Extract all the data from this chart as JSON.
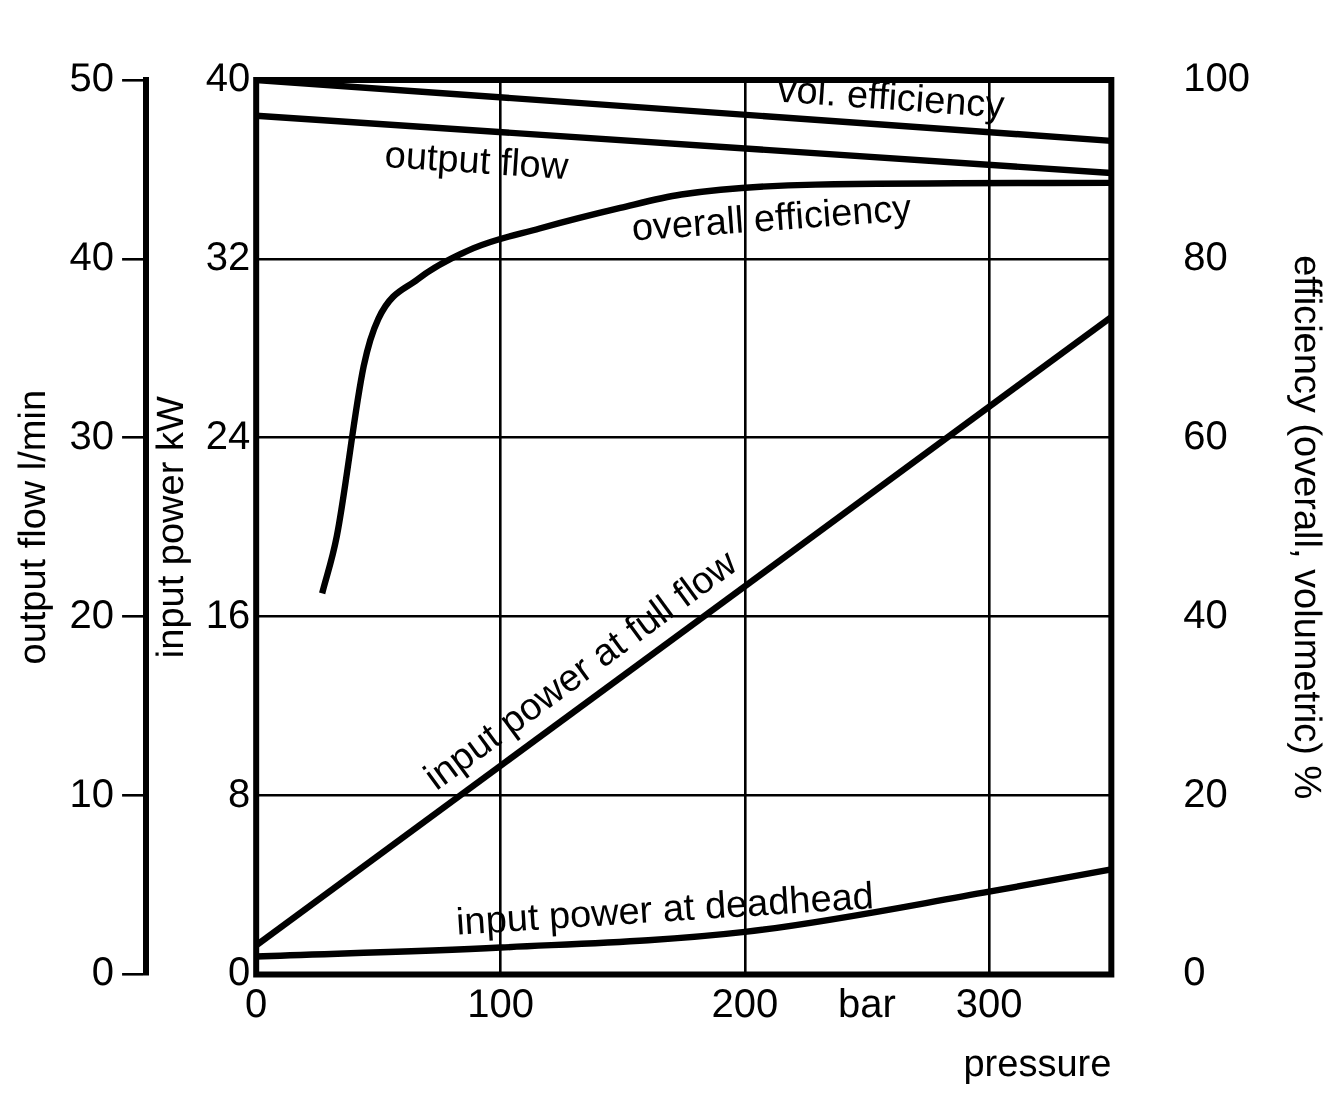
{
  "chart_data": {
    "type": "line",
    "xlabel": "pressure",
    "ylabel": "input power kW",
    "y2label": "efficiency (overall, volumetric) %",
    "y3label": "output flow l/min",
    "xlim": [
      0,
      350
    ],
    "xticks": [
      0,
      100,
      200,
      300
    ],
    "ylim": [
      0,
      40
    ],
    "yticks": [
      0,
      8,
      16,
      24,
      32,
      40
    ],
    "y2lim": [
      0,
      100
    ],
    "y2ticks": [
      0,
      20,
      40,
      60,
      80,
      100
    ],
    "y3lim": [
      0,
      50
    ],
    "y3ticks": [
      0,
      10,
      20,
      30,
      40,
      50
    ],
    "grid": true,
    "legend": false,
    "marker": "none",
    "line_style": "solid",
    "annotations": [
      "bar"
    ],
    "series": [
      {
        "name": "vol. efficiency",
        "color": "#000000",
        "axis": "y2",
        "x": [
          0,
          350
        ],
        "values": [
          100,
          93.2
        ]
      },
      {
        "name": "output flow",
        "color": "#000000",
        "axis": "y3",
        "x": [
          0,
          350
        ],
        "values": [
          48.0,
          44.8
        ]
      },
      {
        "name": "overall efficiency",
        "color": "#000000",
        "axis": "y2",
        "x": [
          27,
          33,
          44,
          50,
          66,
          89,
          116,
          149,
          174,
          229,
          350
        ],
        "values": [
          42.6,
          49,
          68,
          73.3,
          77.7,
          81.2,
          83.4,
          85.7,
          87.2,
          88.3,
          88.5
        ]
      },
      {
        "name": "input power at full flow",
        "color": "#000000",
        "axis": "y",
        "x": [
          0,
          350
        ],
        "values": [
          1.3,
          29.4
        ]
      },
      {
        "name": "input power at deadhead",
        "color": "#000000",
        "axis": "y",
        "x": [
          0,
          100,
          200,
          300,
          350
        ],
        "values": [
          0.8,
          1.2,
          1.9,
          3.7,
          4.7
        ]
      }
    ]
  }
}
